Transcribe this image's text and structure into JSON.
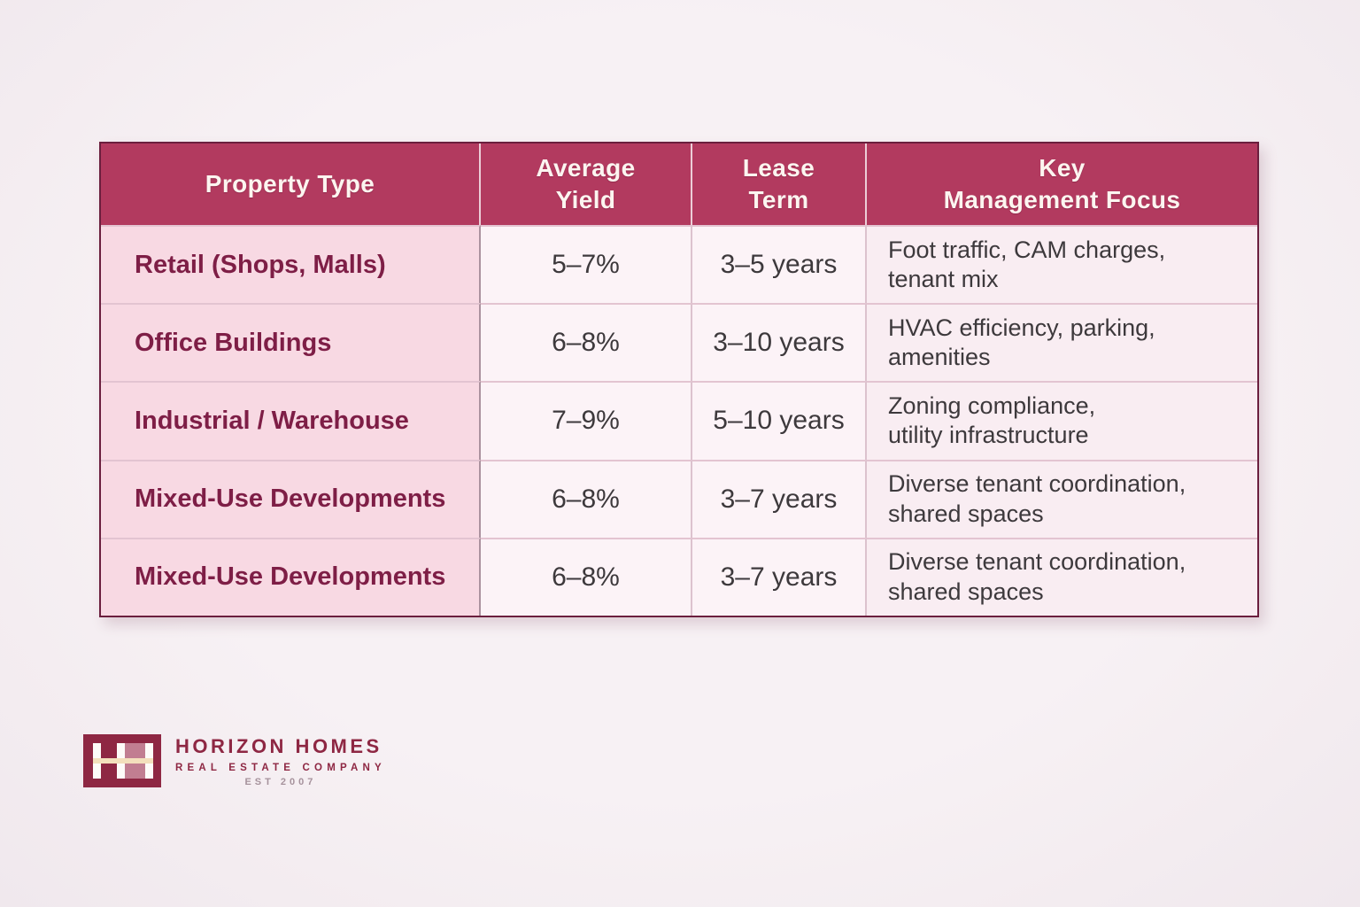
{
  "table": {
    "header": {
      "columns": [
        "Property Type",
        "Average\nYield",
        "Lease\nTerm",
        "Key\nManagement Focus"
      ]
    },
    "rows": [
      {
        "property": "Retail (Shops, Malls)",
        "avg_yield": "5–7%",
        "lease_term": "3–5 years",
        "focus": "Foot traffic, CAM charges,\ntenant mix"
      },
      {
        "property": "Office Buildings",
        "avg_yield": "6–8%",
        "lease_term": "3–10 years",
        "focus": "HVAC efficiency, parking,\namenities"
      },
      {
        "property": "Industrial / Warehouse",
        "avg_yield": "7–9%",
        "lease_term": "5–10 years",
        "focus": "Zoning compliance,\nutility infrastructure"
      },
      {
        "property": "Mixed-Use Developments",
        "avg_yield": "6–8%",
        "lease_term": "3–7 years",
        "focus": "Diverse tenant coordination,\nshared spaces"
      },
      {
        "property": "Mixed-Use Developments",
        "avg_yield": "6–8%",
        "lease_term": "3–7 years",
        "focus": "Diverse tenant coordination,\nshared spaces"
      }
    ],
    "colors": {
      "header_bg": "#b23a5f",
      "header_text": "#fcf5f0",
      "property_col_bg": "#f8d9e3",
      "property_text": "#7e1e46",
      "cell_bg": "#fcf3f7",
      "focus_col_bg": "#f9edf2",
      "body_text": "#3d393c",
      "outer_border": "#6b1f3e"
    }
  },
  "chart_data": {
    "type": "table",
    "columns": [
      "Property Type",
      "Average Yield",
      "Lease Term",
      "Key Management Focus"
    ],
    "rows": [
      [
        "Retail (Shops, Malls)",
        "5–7%",
        "3–5 years",
        "Foot traffic, CAM charges, tenant mix"
      ],
      [
        "Office Buildings",
        "6–8%",
        "3–10 years",
        "HVAC efficiency, parking, amenities"
      ],
      [
        "Industrial / Warehouse",
        "7–9%",
        "5–10 years",
        "Zoning compliance, utility infrastructure"
      ],
      [
        "Mixed-Use Developments",
        "6–8%",
        "3–7 years",
        "Diverse tenant coordination, shared spaces"
      ],
      [
        "Mixed-Use Developments",
        "6–8%",
        "3–7 years",
        "Diverse tenant coordination, shared spaces"
      ]
    ]
  },
  "logo": {
    "monogram": "HH",
    "name": "HORIZON HOMES",
    "tagline": "REAL ESTATE COMPANY",
    "est": "EST 2007",
    "colors": {
      "box": "#8e2743",
      "crossbar": "#f3e0bc",
      "text": "#8e2743",
      "est_text": "#a6929c"
    }
  }
}
